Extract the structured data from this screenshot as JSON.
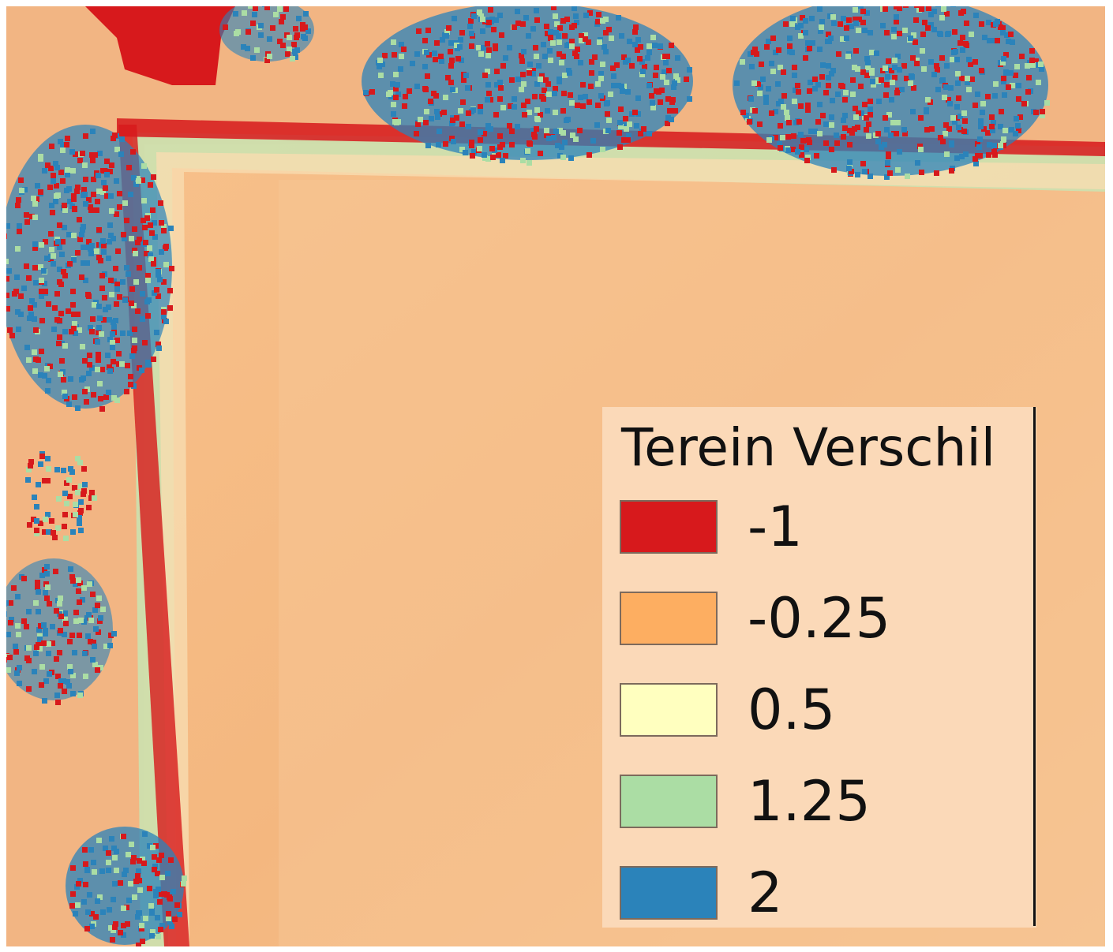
{
  "legend": {
    "title": "Terein Verschil",
    "items": [
      {
        "label": "-1",
        "color": "#d7191c"
      },
      {
        "label": "-0.25",
        "color": "#fdae61"
      },
      {
        "label": "0.5",
        "color": "#ffffbf"
      },
      {
        "label": "1.25",
        "color": "#abdda4"
      },
      {
        "label": "2",
        "color": "#2b83ba"
      }
    ]
  },
  "map": {
    "field_color": "#f5bb84",
    "edge_strip_color": "#c7e4b3",
    "boundary_color": "#d7191c",
    "tree_color": "#2b83ba"
  }
}
